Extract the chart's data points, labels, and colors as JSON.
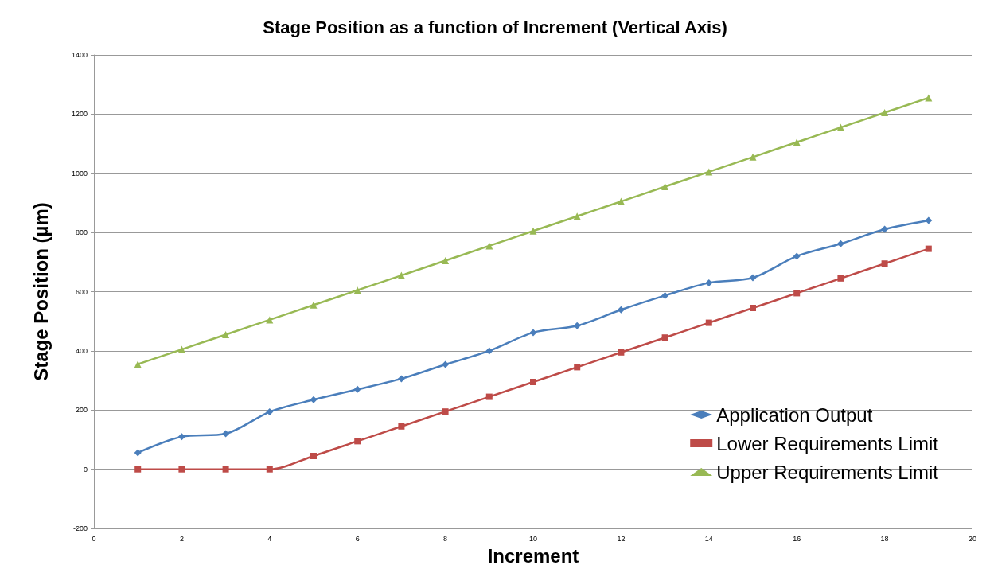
{
  "chart_data": {
    "type": "line",
    "title": "Stage Position as a function of Increment (Vertical Axis)",
    "xlabel": "Increment",
    "ylabel": "Stage Position (µm)",
    "x": [
      1,
      2,
      3,
      4,
      5,
      6,
      7,
      8,
      9,
      10,
      11,
      12,
      13,
      14,
      15,
      16,
      17,
      18,
      19
    ],
    "series": [
      {
        "name": "Application Output",
        "color": "#4a7ebb",
        "marker": "diamond",
        "values": [
          56,
          110,
          120,
          194,
          235,
          270,
          306,
          354,
          400,
          462,
          485,
          539,
          587,
          630,
          647,
          720,
          762,
          811,
          841
        ]
      },
      {
        "name": "Lower Requirements Limit",
        "color": "#be4b48",
        "marker": "square",
        "values": [
          0,
          0,
          0,
          0,
          45,
          95,
          145,
          195,
          245,
          295,
          345,
          395,
          445,
          495,
          545,
          595,
          645,
          695,
          745
        ]
      },
      {
        "name": "Upper Requirements Limit",
        "color": "#98b954",
        "marker": "triangle",
        "values": [
          355,
          405,
          455,
          505,
          555,
          605,
          655,
          705,
          755,
          805,
          855,
          905,
          955,
          1005,
          1055,
          1105,
          1155,
          1205,
          1255
        ]
      }
    ],
    "xlim": [
      0,
      20
    ],
    "xticks": [
      0,
      2,
      4,
      6,
      8,
      10,
      12,
      14,
      16,
      18,
      20
    ],
    "ylim": [
      -200,
      1400
    ],
    "yticks": [
      -200,
      0,
      200,
      400,
      600,
      800,
      1000,
      1200,
      1400
    ],
    "grid": "y",
    "legend": "bottom right",
    "line_style": "solid"
  }
}
